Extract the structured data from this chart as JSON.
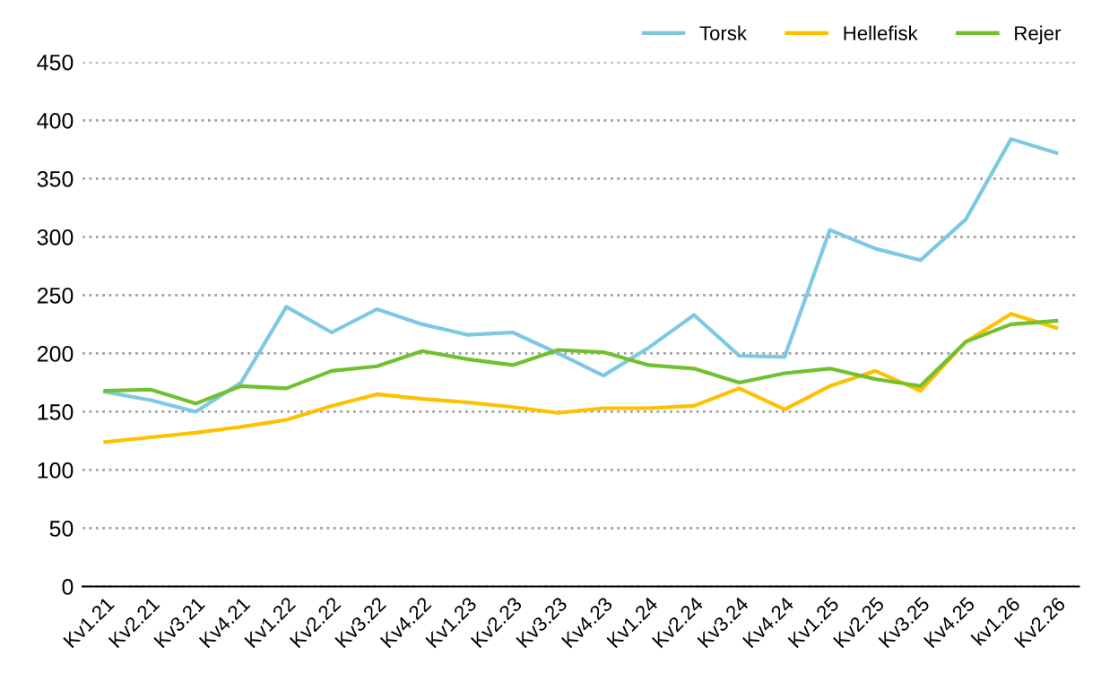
{
  "chart_data": {
    "type": "line",
    "categories": [
      "Kv1.21",
      "Kv2.21",
      "Kv3.21",
      "Kv4.21",
      "Kv1.22",
      "Kv2.22",
      "Kv3.22",
      "Kv4.22",
      "Kv1.23",
      "Kv2.23",
      "Kv3.23",
      "Kv4.23",
      "Kv1.24",
      "Kv2.24",
      "Kv3.24",
      "Kv4.24",
      "Kv1.25",
      "Kv2.25",
      "Kv3.25",
      "Kv4.25",
      "kv1.26",
      "Kv2.26"
    ],
    "series": [
      {
        "name": "Torsk",
        "color": "#7ec8e3",
        "values": [
          167,
          160,
          150,
          175,
          240,
          218,
          238,
          225,
          216,
          218,
          200,
          181,
          205,
          233,
          198,
          197,
          306,
          290,
          280,
          315,
          384,
          372
        ]
      },
      {
        "name": "Hellefisk",
        "color": "#ffc000",
        "values": [
          124,
          128,
          132,
          137,
          143,
          155,
          165,
          161,
          158,
          154,
          149,
          153,
          153,
          155,
          170,
          152,
          172,
          185,
          168,
          210,
          234,
          222
        ]
      },
      {
        "name": "Rejer",
        "color": "#70c030",
        "values": [
          168,
          169,
          157,
          172,
          170,
          185,
          189,
          202,
          195,
          190,
          203,
          201,
          190,
          187,
          175,
          183,
          187,
          178,
          172,
          210,
          225,
          228
        ]
      }
    ],
    "ylim": [
      0,
      450
    ],
    "yticks": [
      0,
      50,
      100,
      150,
      200,
      250,
      300,
      350,
      400,
      450
    ],
    "grid": "y",
    "legend": "top right",
    "marker": "none",
    "line_style": "solid"
  }
}
